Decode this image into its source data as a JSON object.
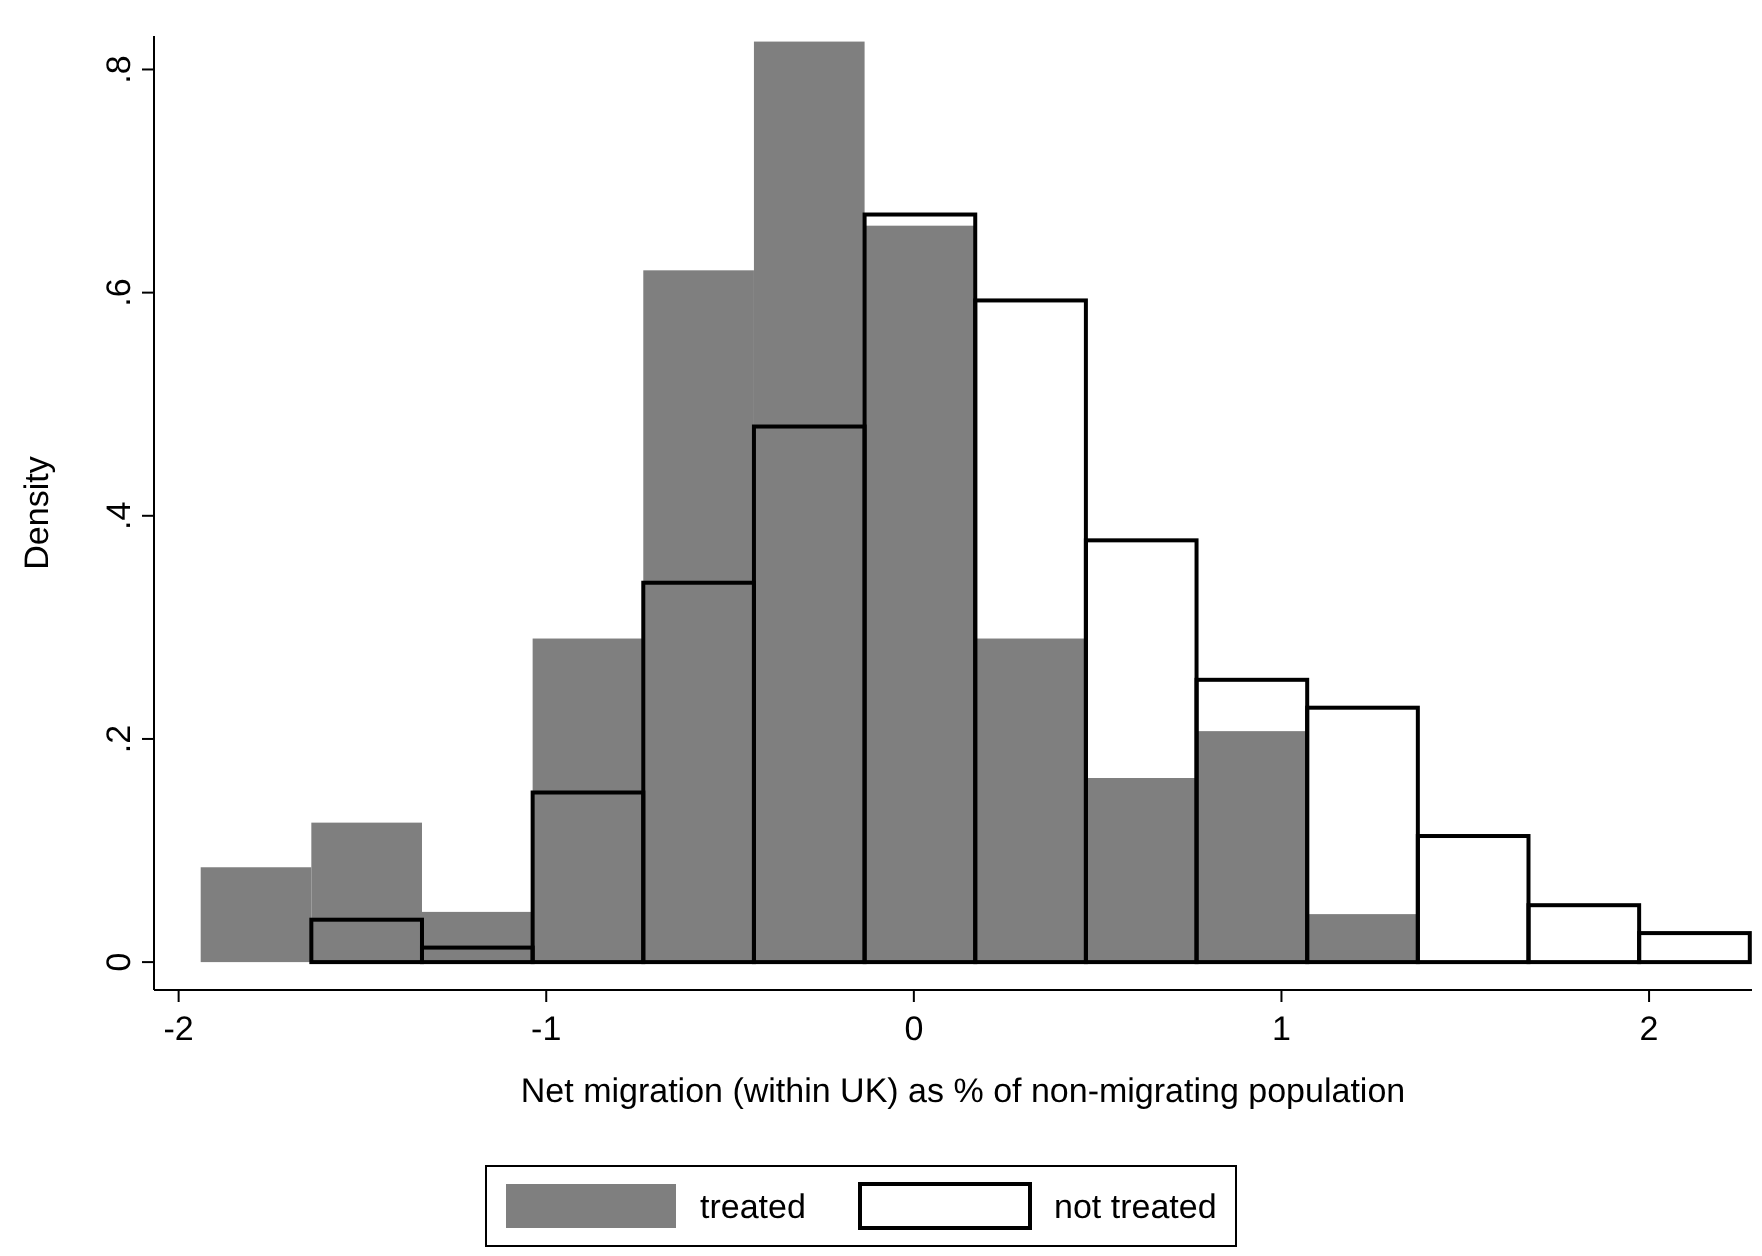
{
  "chart_data": {
    "type": "histogram",
    "xlabel": "Net migration (within UK) as % of non-migrating population",
    "ylabel": "Density",
    "xlim": [
      -2.067,
      2.28
    ],
    "ylim": [
      -0.025,
      0.83
    ],
    "xticks": [
      -2,
      -1,
      0,
      1,
      2
    ],
    "yticks": [
      0,
      {
        "value": 0.2,
        "label": ".2"
      },
      {
        "value": 0.4,
        "label": ".4"
      },
      {
        "value": 0.6,
        "label": ".6"
      },
      {
        "value": 0.8,
        "label": ".8"
      }
    ],
    "grid": false,
    "legend": "bottom",
    "bins": [
      -1.94,
      -1.639,
      -1.338,
      -1.037,
      -0.736,
      -0.435,
      -0.134,
      0.167,
      0.468,
      0.769,
      1.07,
      1.371,
      1.672,
      1.973,
      2.274
    ],
    "series": [
      {
        "name": "treated",
        "color": "#7f7f7f",
        "values": [
          0.085,
          0.125,
          0.045,
          0.29,
          0.62,
          0.825,
          0.66,
          0.29,
          0.165,
          0.207,
          0.043,
          null,
          null,
          null
        ]
      },
      {
        "name": "not treated",
        "color": "#000000",
        "values": [
          null,
          0.038,
          0.013,
          0.152,
          0.34,
          0.48,
          0.67,
          0.593,
          0.378,
          0.253,
          0.228,
          0.113,
          0.051,
          0.026
        ]
      }
    ]
  }
}
